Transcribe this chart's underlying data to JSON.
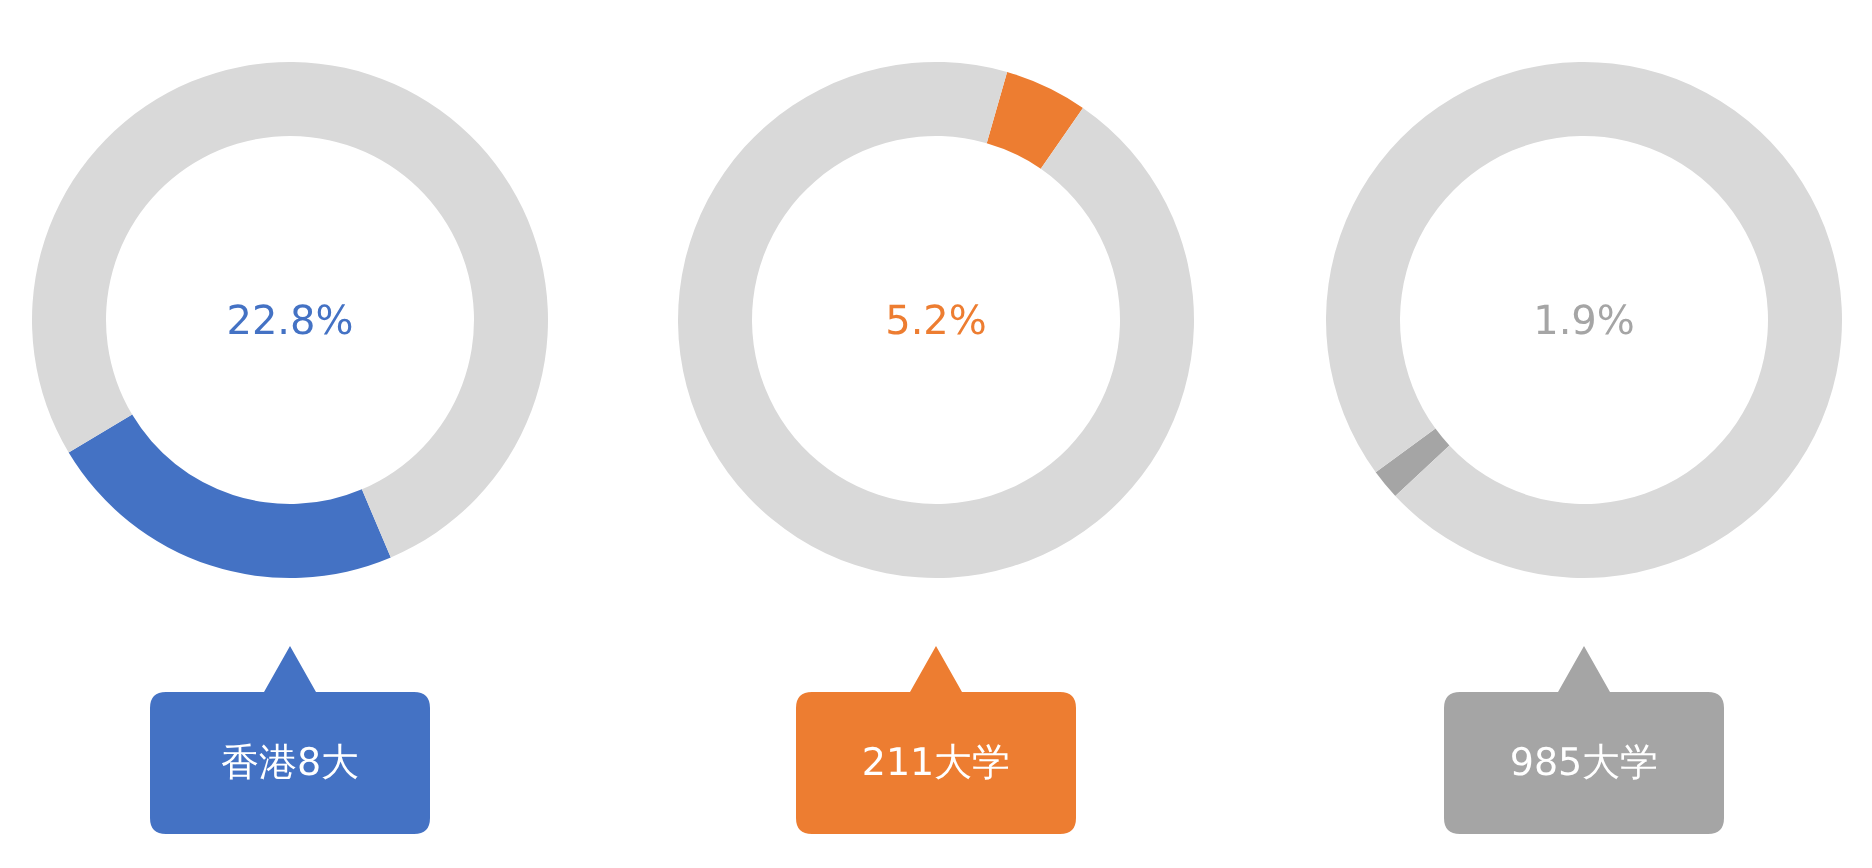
{
  "chart_data": [
    {
      "type": "donut",
      "title": "香港8大",
      "categories": [
        null,
        null
      ],
      "values": [
        22.8,
        77.2
      ],
      "colors": [
        "#4472c4",
        "#d9d9d9"
      ],
      "annotations": [
        "22.8%"
      ]
    },
    {
      "type": "donut",
      "title": "211大学",
      "categories": [
        null,
        null
      ],
      "values": [
        5.2,
        94.8
      ],
      "colors": [
        "#ed7d31",
        "#d9d9d9"
      ],
      "annotations": [
        "5.2%"
      ]
    },
    {
      "type": "donut",
      "title": "985大学",
      "categories": [
        null,
        null
      ],
      "values": [
        1.9,
        98.1
      ],
      "colors": [
        "#a5a5a5",
        "#d9d9d9"
      ],
      "annotations": [
        "1.9%"
      ]
    }
  ]
}
